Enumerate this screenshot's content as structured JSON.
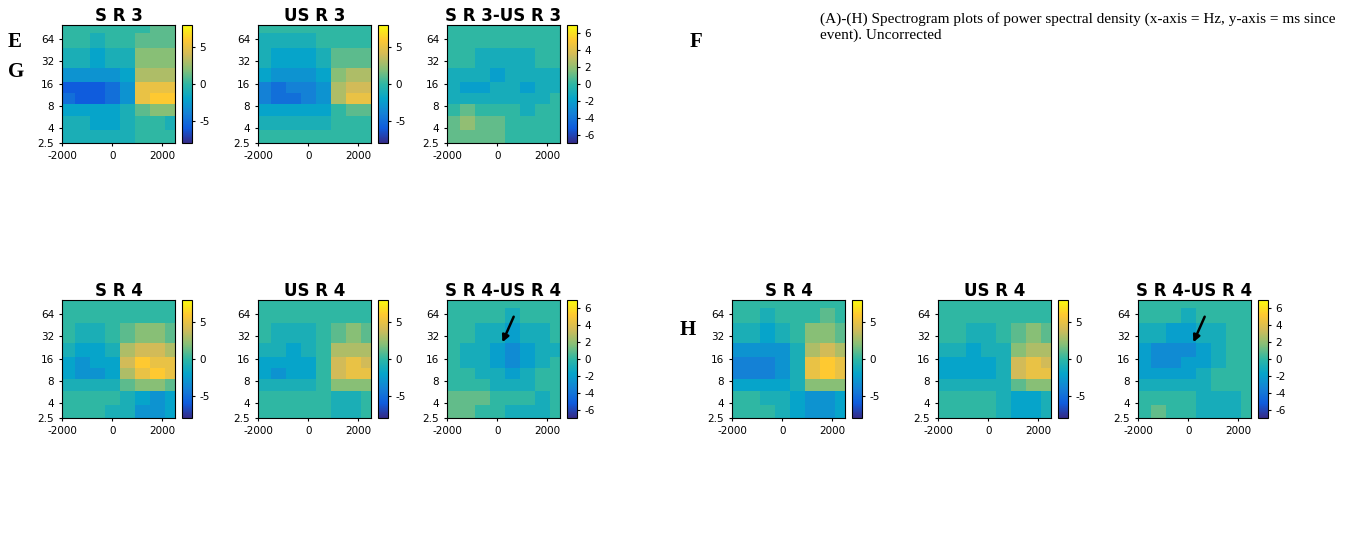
{
  "panel_labels": [
    "E",
    "F",
    "G",
    "H"
  ],
  "caption": "(A)-(H) Spectrogram plots of power spectral density (x-axis = Hz, y-axis = ms since event). Uncorrected",
  "chart_data": [
    {
      "type": "heatmap",
      "title": "S R 3",
      "log": "y",
      "x": [
        -1800,
        -1200,
        -600,
        0,
        600,
        1200,
        1800,
        2400
      ],
      "y": [
        3,
        4.5,
        7,
        10,
        14,
        20,
        32,
        64,
        90
      ],
      "cells": [
        [
          -1,
          -1,
          -1,
          -1,
          -1,
          0,
          0,
          0
        ],
        [
          -1,
          -1,
          -2,
          -2,
          -1,
          0,
          0,
          -1
        ],
        [
          -2,
          -2,
          -2,
          -2,
          -1,
          1,
          2,
          2
        ],
        [
          -5,
          -6,
          -6,
          -5,
          -3,
          5,
          6,
          6
        ],
        [
          -6,
          -6,
          -6,
          -5,
          -3,
          5,
          5,
          5
        ],
        [
          -3,
          -3,
          -3,
          -3,
          -2,
          3,
          3,
          3
        ],
        [
          -1,
          -1,
          -2,
          -1,
          -1,
          2,
          2,
          2
        ],
        [
          0,
          0,
          -1,
          0,
          0,
          1,
          1,
          1
        ],
        [
          0,
          0,
          0,
          0,
          0,
          0,
          1,
          1
        ]
      ],
      "xlim": [
        -2000,
        2500
      ],
      "xticks": [
        -2000,
        0,
        2000
      ],
      "ylim": [
        2.5,
        100
      ],
      "yticks": [
        2.5,
        4,
        8,
        16,
        32,
        64
      ],
      "colorbar_range": [
        -8,
        8
      ],
      "colorbar_ticks": [
        -5,
        0,
        5
      ]
    },
    {
      "type": "heatmap",
      "title": "US R 3",
      "log": "y",
      "x": [
        -1800,
        -1200,
        -600,
        0,
        600,
        1200,
        1800,
        2400
      ],
      "y": [
        3,
        4.5,
        7,
        10,
        14,
        20,
        32,
        64,
        90
      ],
      "cells": [
        [
          0,
          0,
          0,
          0,
          0,
          0,
          0,
          0
        ],
        [
          -1,
          -1,
          -1,
          -1,
          -1,
          0,
          0,
          0
        ],
        [
          -2,
          -2,
          -2,
          -2,
          -2,
          0,
          1,
          1
        ],
        [
          -4,
          -5,
          -5,
          -4,
          -3,
          3,
          5,
          5
        ],
        [
          -4,
          -5,
          -4,
          -4,
          -3,
          3,
          4,
          4
        ],
        [
          -2,
          -3,
          -3,
          -3,
          -2,
          2,
          3,
          3
        ],
        [
          -1,
          -2,
          -2,
          -2,
          -1,
          1,
          1,
          1
        ],
        [
          -1,
          -1,
          -1,
          -1,
          0,
          0,
          0,
          0
        ],
        [
          0,
          0,
          0,
          0,
          0,
          0,
          0,
          0
        ]
      ],
      "xlim": [
        -2000,
        2500
      ],
      "xticks": [
        -2000,
        0,
        2000
      ],
      "ylim": [
        2.5,
        100
      ],
      "yticks": [
        2.5,
        4,
        8,
        16,
        32,
        64
      ],
      "colorbar_range": [
        -8,
        8
      ],
      "colorbar_ticks": [
        -5,
        0,
        5
      ]
    },
    {
      "type": "heatmap",
      "title": "S R 3-US R 3",
      "log": "y",
      "x": [
        -1800,
        -1200,
        -600,
        0,
        600,
        1200,
        1800,
        2400
      ],
      "y": [
        3,
        4.5,
        7,
        10,
        14,
        20,
        32,
        64,
        90
      ],
      "cells": [
        [
          1,
          1,
          1,
          1,
          0,
          0,
          0,
          0
        ],
        [
          1,
          2,
          1,
          1,
          0,
          0,
          0,
          0
        ],
        [
          0,
          1,
          0,
          0,
          0,
          -1,
          0,
          0
        ],
        [
          -1,
          -1,
          -1,
          -1,
          -1,
          -1,
          -1,
          0
        ],
        [
          -1,
          -2,
          -2,
          -1,
          -1,
          -2,
          -1,
          -1
        ],
        [
          -1,
          -1,
          -1,
          -2,
          -1,
          -1,
          -1,
          -1
        ],
        [
          0,
          0,
          -1,
          -1,
          -1,
          -1,
          0,
          0
        ],
        [
          0,
          0,
          0,
          0,
          0,
          0,
          0,
          0
        ],
        [
          0,
          0,
          0,
          0,
          0,
          0,
          0,
          0
        ]
      ],
      "xlim": [
        -2000,
        2500
      ],
      "xticks": [
        -2000,
        0,
        2000
      ],
      "ylim": [
        2.5,
        100
      ],
      "yticks": [
        2.5,
        4,
        8,
        16,
        32,
        64
      ],
      "colorbar_range": [
        -7,
        7
      ],
      "colorbar_ticks": [
        -6,
        -4,
        -2,
        0,
        2,
        4,
        6
      ]
    },
    {
      "type": "heatmap",
      "title": "S R 4",
      "log": "y",
      "x": [
        -1800,
        -1200,
        -600,
        0,
        600,
        1200,
        1800,
        2400
      ],
      "y": [
        3,
        4.5,
        7,
        10,
        14,
        20,
        32,
        64,
        90
      ],
      "cells": [
        [
          0,
          0,
          0,
          -1,
          -1,
          -3,
          -3,
          -2
        ],
        [
          0,
          0,
          0,
          0,
          -1,
          -2,
          -3,
          -2
        ],
        [
          -1,
          -1,
          -1,
          -1,
          1,
          2,
          2,
          1
        ],
        [
          -2,
          -3,
          -3,
          -2,
          3,
          5,
          6,
          5
        ],
        [
          -2,
          -3,
          -2,
          -2,
          4,
          6,
          5,
          5
        ],
        [
          -1,
          -2,
          -2,
          -1,
          3,
          4,
          4,
          3
        ],
        [
          0,
          -1,
          -1,
          0,
          1,
          2,
          2,
          1
        ],
        [
          0,
          0,
          0,
          0,
          0,
          0,
          0,
          0
        ],
        [
          0,
          0,
          0,
          0,
          0,
          0,
          0,
          0
        ]
      ],
      "xlim": [
        -2000,
        2500
      ],
      "xticks": [
        -2000,
        0,
        2000
      ],
      "ylim": [
        2.5,
        100
      ],
      "yticks": [
        2.5,
        4,
        8,
        16,
        32,
        64
      ],
      "colorbar_range": [
        -8,
        8
      ],
      "colorbar_ticks": [
        -5,
        0,
        5
      ]
    },
    {
      "type": "heatmap",
      "title": "US R 4",
      "log": "y",
      "x": [
        -1800,
        -1200,
        -600,
        0,
        600,
        1200,
        1800,
        2400
      ],
      "y": [
        3,
        4.5,
        7,
        10,
        14,
        20,
        32,
        64,
        90
      ],
      "cells": [
        [
          0,
          0,
          0,
          0,
          0,
          -1,
          -1,
          0
        ],
        [
          0,
          0,
          0,
          0,
          0,
          -1,
          -1,
          0
        ],
        [
          -1,
          -1,
          -1,
          -1,
          0,
          2,
          2,
          2
        ],
        [
          -2,
          -3,
          -2,
          -2,
          0,
          4,
          5,
          5
        ],
        [
          -2,
          -2,
          -2,
          -2,
          0,
          4,
          5,
          4
        ],
        [
          -1,
          -1,
          -2,
          -1,
          0,
          3,
          3,
          3
        ],
        [
          0,
          -1,
          -1,
          -1,
          0,
          1,
          2,
          1
        ],
        [
          0,
          0,
          0,
          0,
          0,
          0,
          0,
          0
        ],
        [
          0,
          0,
          0,
          0,
          0,
          0,
          0,
          0
        ]
      ],
      "xlim": [
        -2000,
        2500
      ],
      "xticks": [
        -2000,
        0,
        2000
      ],
      "ylim": [
        2.5,
        100
      ],
      "yticks": [
        2.5,
        4,
        8,
        16,
        32,
        64
      ],
      "colorbar_range": [
        -8,
        8
      ],
      "colorbar_ticks": [
        -5,
        0,
        5
      ]
    },
    {
      "type": "heatmap",
      "title": "S R 4-US R 4",
      "log": "y",
      "x": [
        -1800,
        -1200,
        -600,
        0,
        600,
        1200,
        1800,
        2400
      ],
      "y": [
        3,
        4.5,
        7,
        10,
        14,
        20,
        32,
        64,
        90
      ],
      "cells": [
        [
          1,
          1,
          0,
          0,
          -1,
          -1,
          -1,
          0
        ],
        [
          1,
          1,
          1,
          0,
          0,
          0,
          -1,
          0
        ],
        [
          0,
          0,
          0,
          -1,
          -1,
          -1,
          0,
          0
        ],
        [
          0,
          0,
          -1,
          -1,
          -2,
          -1,
          0,
          0
        ],
        [
          0,
          -1,
          -1,
          -2,
          -3,
          -2,
          -1,
          0
        ],
        [
          0,
          -1,
          -1,
          -2,
          -3,
          -2,
          -1,
          -1
        ],
        [
          0,
          0,
          -1,
          -1,
          -2,
          -1,
          -1,
          0
        ],
        [
          0,
          0,
          0,
          0,
          -1,
          0,
          0,
          0
        ],
        [
          0,
          0,
          0,
          0,
          0,
          0,
          0,
          0
        ]
      ],
      "xlim": [
        -2000,
        2500
      ],
      "xticks": [
        -2000,
        0,
        2000
      ],
      "ylim": [
        2.5,
        100
      ],
      "yticks": [
        2.5,
        4,
        8,
        16,
        32,
        64
      ],
      "colorbar_range": [
        -7,
        7
      ],
      "colorbar_ticks": [
        -6,
        -4,
        -2,
        0,
        2,
        4,
        6
      ]
    },
    {
      "type": "heatmap",
      "title": "S R 4",
      "log": "y",
      "x": [
        -1800,
        -1200,
        -600,
        0,
        600,
        1200,
        1800,
        2400
      ],
      "y": [
        3,
        4.5,
        7,
        10,
        14,
        20,
        32,
        64,
        90
      ],
      "cells": [
        [
          0,
          0,
          0,
          -1,
          -2,
          -3,
          -3,
          -2
        ],
        [
          0,
          0,
          -1,
          -1,
          -2,
          -3,
          -3,
          -2
        ],
        [
          -2,
          -2,
          -2,
          -2,
          -1,
          2,
          2,
          2
        ],
        [
          -4,
          -4,
          -4,
          -3,
          -1,
          5,
          6,
          5
        ],
        [
          -4,
          -4,
          -4,
          -3,
          -1,
          5,
          6,
          5
        ],
        [
          -3,
          -3,
          -3,
          -3,
          -1,
          3,
          4,
          3
        ],
        [
          -1,
          -1,
          -2,
          -1,
          0,
          2,
          2,
          1
        ],
        [
          0,
          0,
          -1,
          0,
          0,
          0,
          1,
          0
        ],
        [
          0,
          0,
          0,
          0,
          0,
          0,
          0,
          0
        ]
      ],
      "xlim": [
        -2000,
        2500
      ],
      "xticks": [
        -2000,
        0,
        2000
      ],
      "ylim": [
        2.5,
        100
      ],
      "yticks": [
        2.5,
        4,
        8,
        16,
        32,
        64
      ],
      "colorbar_range": [
        -8,
        8
      ],
      "colorbar_ticks": [
        -5,
        0,
        5
      ]
    },
    {
      "type": "heatmap",
      "title": "US R 4",
      "log": "y",
      "x": [
        -1800,
        -1200,
        -600,
        0,
        600,
        1200,
        1800,
        2400
      ],
      "y": [
        3,
        4.5,
        7,
        10,
        14,
        20,
        32,
        64,
        90
      ],
      "cells": [
        [
          0,
          0,
          0,
          0,
          -1,
          -2,
          -2,
          -1
        ],
        [
          0,
          0,
          0,
          0,
          -1,
          -2,
          -2,
          -1
        ],
        [
          -1,
          -1,
          -1,
          -1,
          -1,
          1,
          2,
          2
        ],
        [
          -2,
          -2,
          -2,
          -2,
          -1,
          4,
          5,
          5
        ],
        [
          -2,
          -2,
          -2,
          -2,
          -1,
          4,
          5,
          4
        ],
        [
          -1,
          -1,
          -2,
          -1,
          -1,
          2,
          3,
          3
        ],
        [
          0,
          0,
          -1,
          -1,
          0,
          1,
          2,
          1
        ],
        [
          0,
          0,
          0,
          0,
          0,
          0,
          0,
          0
        ],
        [
          0,
          0,
          0,
          0,
          0,
          0,
          0,
          0
        ]
      ],
      "xlim": [
        -2000,
        2500
      ],
      "xticks": [
        -2000,
        0,
        2000
      ],
      "ylim": [
        2.5,
        100
      ],
      "yticks": [
        2.5,
        4,
        8,
        16,
        32,
        64
      ],
      "colorbar_range": [
        -8,
        8
      ],
      "colorbar_ticks": [
        -5,
        0,
        5
      ]
    },
    {
      "type": "heatmap",
      "title": "S R 4-US R 4",
      "log": "y",
      "x": [
        -1800,
        -1200,
        -600,
        0,
        600,
        1200,
        1800,
        2400
      ],
      "y": [
        3,
        4.5,
        7,
        10,
        14,
        20,
        32,
        64,
        90
      ],
      "cells": [
        [
          0,
          1,
          0,
          0,
          -1,
          -1,
          -1,
          0
        ],
        [
          0,
          0,
          0,
          0,
          -1,
          -1,
          -1,
          0
        ],
        [
          -1,
          -1,
          -1,
          -1,
          -1,
          0,
          0,
          0
        ],
        [
          -2,
          -2,
          -2,
          -2,
          -1,
          0,
          0,
          0
        ],
        [
          -2,
          -3,
          -3,
          -2,
          -2,
          -1,
          0,
          0
        ],
        [
          -2,
          -3,
          -3,
          -3,
          -2,
          -1,
          0,
          0
        ],
        [
          -1,
          -1,
          -2,
          -2,
          -1,
          -1,
          0,
          0
        ],
        [
          0,
          0,
          0,
          -1,
          0,
          0,
          0,
          0
        ],
        [
          0,
          0,
          0,
          0,
          0,
          0,
          0,
          0
        ]
      ],
      "xlim": [
        -2000,
        2500
      ],
      "xticks": [
        -2000,
        0,
        2000
      ],
      "ylim": [
        2.5,
        100
      ],
      "yticks": [
        2.5,
        4,
        8,
        16,
        32,
        64
      ],
      "colorbar_range": [
        -7,
        7
      ],
      "colorbar_ticks": [
        -6,
        -4,
        -2,
        0,
        2,
        4,
        6
      ]
    }
  ]
}
